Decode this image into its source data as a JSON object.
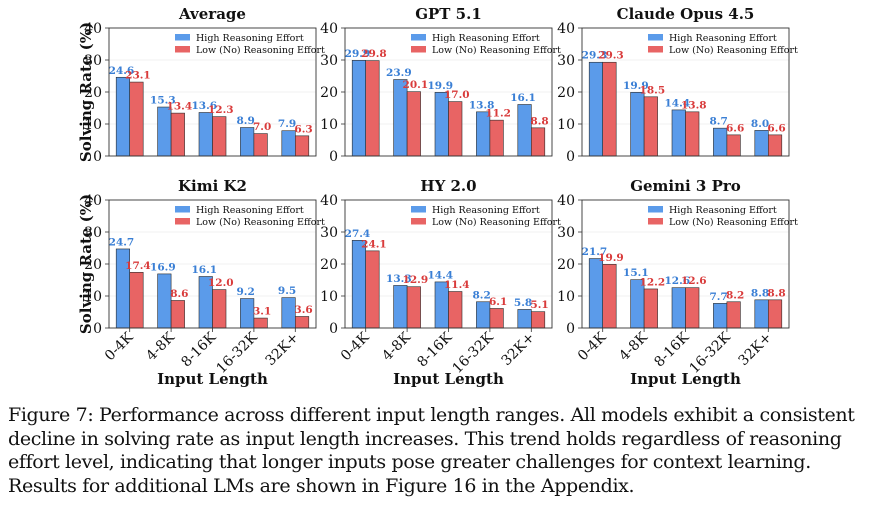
{
  "legend": {
    "high": "High Reasoning Effort",
    "low": "Low (No) Reasoning Effort"
  },
  "colors": {
    "high": "#5b9bea",
    "low": "#e86464",
    "high_label": "#3a7fd5",
    "low_label": "#d93b3b"
  },
  "caption": "Figure 7: Performance across different input length ranges. All models exhibit a consistent decline in solving rate as input length increases. This trend holds regardless of reasoning effort level, indicating that longer inputs pose greater challenges for context learning. Results for additional LMs are shown in Figure 16 in the Appendix.",
  "chart_data": [
    {
      "type": "bar",
      "title": "Average",
      "categories": [
        "0-4K",
        "4-8K",
        "8-16K",
        "16-32K",
        "32K+"
      ],
      "series": [
        {
          "name": "High Reasoning Effort",
          "values": [
            24.6,
            15.3,
            13.6,
            8.9,
            7.9
          ]
        },
        {
          "name": "Low (No) Reasoning Effort",
          "values": [
            23.1,
            13.4,
            12.3,
            7.0,
            6.3
          ]
        }
      ],
      "ylabel": "Solving Rate (%)",
      "xlabel": "",
      "ylim": [
        0,
        40
      ],
      "yticks": [
        0,
        10,
        20,
        30,
        40
      ],
      "legend": "top-right"
    },
    {
      "type": "bar",
      "title": "GPT 5.1",
      "categories": [
        "0-4K",
        "4-8K",
        "8-16K",
        "16-32K",
        "32K+"
      ],
      "series": [
        {
          "name": "High Reasoning Effort",
          "values": [
            29.9,
            23.9,
            19.9,
            13.8,
            16.1
          ]
        },
        {
          "name": "Low (No) Reasoning Effort",
          "values": [
            29.8,
            20.1,
            17.0,
            11.2,
            8.8
          ]
        }
      ],
      "ylabel": "",
      "xlabel": "",
      "ylim": [
        0,
        40
      ],
      "yticks": [
        0,
        10,
        20,
        30,
        40
      ],
      "legend": "top-right"
    },
    {
      "type": "bar",
      "title": "Claude Opus 4.5",
      "categories": [
        "0-4K",
        "4-8K",
        "8-16K",
        "16-32K",
        "32K+"
      ],
      "series": [
        {
          "name": "High Reasoning Effort",
          "values": [
            29.3,
            19.9,
            14.4,
            8.7,
            8.0
          ]
        },
        {
          "name": "Low (No) Reasoning Effort",
          "values": [
            29.3,
            18.5,
            13.8,
            6.6,
            6.6
          ]
        }
      ],
      "ylabel": "",
      "xlabel": "",
      "ylim": [
        0,
        40
      ],
      "yticks": [
        0,
        10,
        20,
        30,
        40
      ],
      "legend": "top-right"
    },
    {
      "type": "bar",
      "title": "Kimi K2",
      "categories": [
        "0-4K",
        "4-8K",
        "8-16K",
        "16-32K",
        "32K+"
      ],
      "series": [
        {
          "name": "High Reasoning Effort",
          "values": [
            24.7,
            16.9,
            16.1,
            9.2,
            9.5
          ]
        },
        {
          "name": "Low (No) Reasoning Effort",
          "values": [
            17.4,
            8.6,
            12.0,
            3.1,
            3.6
          ]
        }
      ],
      "ylabel": "Solving Rate (%)",
      "xlabel": "Input Length",
      "ylim": [
        0,
        40
      ],
      "yticks": [
        0,
        10,
        20,
        30,
        40
      ],
      "legend": "top-right"
    },
    {
      "type": "bar",
      "title": "HY 2.0",
      "categories": [
        "0-4K",
        "4-8K",
        "8-16K",
        "16-32K",
        "32K+"
      ],
      "series": [
        {
          "name": "High Reasoning Effort",
          "values": [
            27.4,
            13.3,
            14.4,
            8.2,
            5.8
          ]
        },
        {
          "name": "Low (No) Reasoning Effort",
          "values": [
            24.1,
            12.9,
            11.4,
            6.1,
            5.1
          ]
        }
      ],
      "ylabel": "",
      "xlabel": "Input Length",
      "ylim": [
        0,
        40
      ],
      "yticks": [
        0,
        10,
        20,
        30,
        40
      ],
      "legend": "top-right"
    },
    {
      "type": "bar",
      "title": "Gemini 3 Pro",
      "categories": [
        "0-4K",
        "4-8K",
        "8-16K",
        "16-32K",
        "32K+"
      ],
      "series": [
        {
          "name": "High Reasoning Effort",
          "values": [
            21.7,
            15.1,
            12.6,
            7.7,
            8.8
          ]
        },
        {
          "name": "Low (No) Reasoning Effort",
          "values": [
            19.9,
            12.2,
            12.6,
            8.2,
            8.8
          ]
        }
      ],
      "ylabel": "",
      "xlabel": "Input Length",
      "ylim": [
        0,
        40
      ],
      "yticks": [
        0,
        10,
        20,
        30,
        40
      ],
      "legend": "top-right"
    }
  ]
}
